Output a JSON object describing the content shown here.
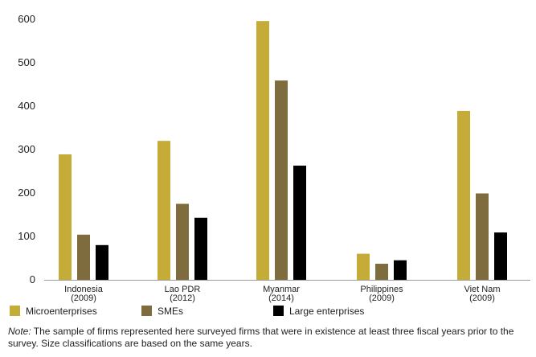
{
  "colors": {
    "microenterprises": "#c5ab37",
    "smes": "#7f6c3e",
    "large_enterprises": "#000000",
    "axis": "#999999"
  },
  "chart_data": {
    "type": "bar",
    "categories": [
      [
        "Indonesia",
        "(2009)"
      ],
      [
        "Lao PDR",
        "(2012)"
      ],
      [
        "Myanmar",
        "(2014)"
      ],
      [
        "Philippines",
        "(2009)"
      ],
      [
        "Viet Nam",
        "(2009)"
      ]
    ],
    "series": [
      {
        "name": "Microenterprises",
        "values": [
          289,
          320,
          596,
          60,
          389
        ]
      },
      {
        "name": "SMEs",
        "values": [
          104,
          175,
          459,
          37,
          199
        ]
      },
      {
        "name": "Large enterprises",
        "values": [
          80,
          143,
          263,
          45,
          109
        ]
      }
    ],
    "ylim": [
      0,
      600
    ],
    "yticks": [
      0,
      100,
      200,
      300,
      400,
      500,
      600
    ],
    "grid": false,
    "legend_position": "bottom"
  },
  "note": {
    "label": "Note:",
    "text": " The sample of firms represented here surveyed firms that were in existence at least three fiscal years prior to the survey. Size classifications are based on the same years."
  }
}
